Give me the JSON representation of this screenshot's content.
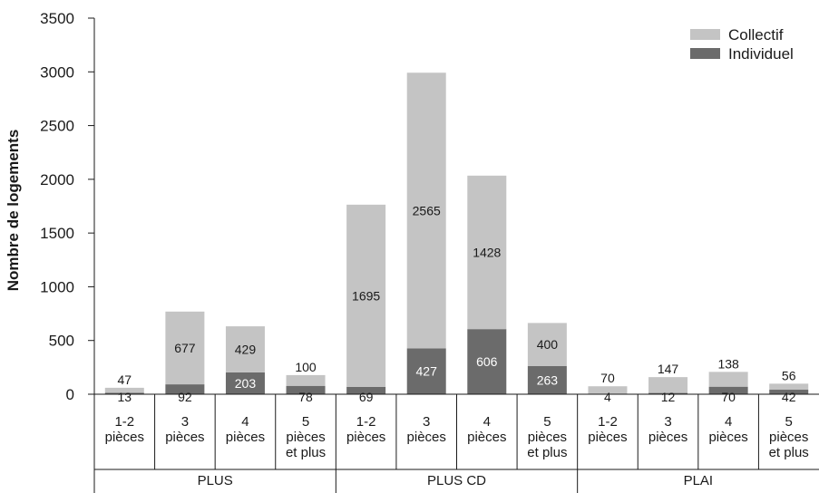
{
  "chart_data": {
    "type": "bar",
    "stacked": true,
    "ylabel": "Nombre de logements",
    "ylim": [
      0,
      3500
    ],
    "yticks": [
      0,
      500,
      1000,
      1500,
      2000,
      2500,
      3000,
      3500
    ],
    "grid": false,
    "legend_position": "top-right",
    "groups": [
      {
        "label": "PLUS",
        "categories": [
          [
            "1-2",
            "pièces"
          ],
          [
            "3",
            "pièces"
          ],
          [
            "4",
            "pièces"
          ],
          [
            "5",
            "pièces",
            "et plus"
          ]
        ]
      },
      {
        "label": "PLUS CD",
        "categories": [
          [
            "1-2",
            "pièces"
          ],
          [
            "3",
            "pièces"
          ],
          [
            "4",
            "pièces"
          ],
          [
            "5",
            "pièces",
            "et plus"
          ]
        ]
      },
      {
        "label": "PLAI",
        "categories": [
          [
            "1-2",
            "pièces"
          ],
          [
            "3",
            "pièces"
          ],
          [
            "4",
            "pièces"
          ],
          [
            "5",
            "pièces",
            "et plus"
          ]
        ]
      }
    ],
    "series": [
      {
        "name": "Individuel",
        "color": "#6b6b6b",
        "values": [
          13,
          92,
          203,
          78,
          69,
          427,
          606,
          263,
          4,
          12,
          70,
          42
        ]
      },
      {
        "name": "Collectif",
        "color": "#c4c4c4",
        "values": [
          47,
          677,
          429,
          100,
          1695,
          2565,
          1428,
          400,
          70,
          147,
          138,
          56
        ]
      }
    ]
  }
}
